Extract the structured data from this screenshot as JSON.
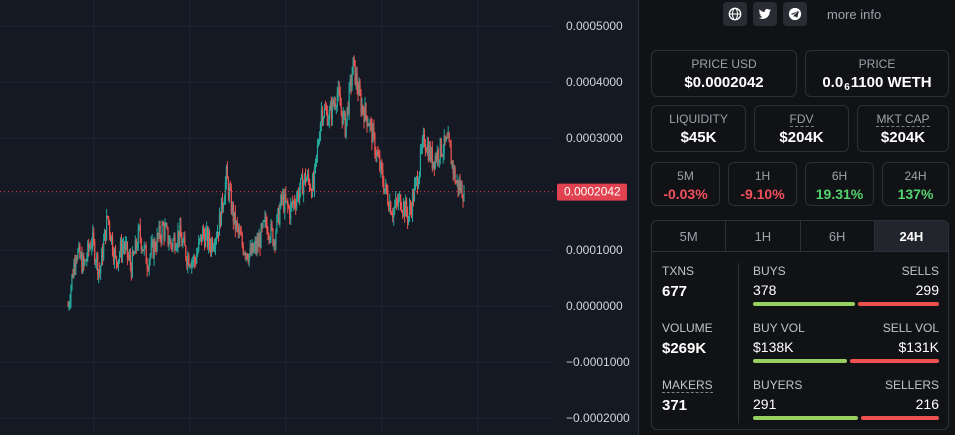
{
  "chart": {
    "y_ticks": [
      "0.0005000",
      "0.0004000",
      "0.0003000",
      "0.0002000",
      "0.0001000",
      "0.0000000",
      "−0.0001000",
      "−0.0002000"
    ],
    "current_price_label": "0.0002042",
    "colors": {
      "up": "#26a69a",
      "down": "#ef5350",
      "price_line": "#e0424f"
    }
  },
  "chart_data": {
    "type": "candlestick",
    "ylim": [
      -0.0002,
      0.0005
    ],
    "current": 0.0002042,
    "close_path": [
      0.0,
      0.0001,
      7e-05,
      0.00012,
      6e-05,
      0.00016,
      8e-05,
      0.00011,
      7e-05,
      0.00013,
      8e-05,
      0.00011,
      0.00014,
      0.00011,
      0.00013,
      9e-05,
      8e-05,
      0.00013,
      0.00011,
      0.00014,
      0.00023,
      0.00015,
      0.00011,
      9e-05,
      0.00011,
      0.00015,
      0.00012,
      0.00019,
      0.00017,
      0.0002,
      0.00023,
      0.00021,
      0.00035,
      0.00034,
      0.00038,
      0.00032,
      0.00043,
      0.00036,
      0.00033,
      0.00027,
      0.00021,
      0.00017,
      0.00019,
      0.00016,
      0.00022,
      0.0003,
      0.00026,
      0.00028,
      0.00029,
      0.00022,
      0.0002042
    ]
  },
  "links": {
    "website_icon": "globe-icon",
    "twitter_icon": "twitter-icon",
    "telegram_icon": "telegram-icon",
    "more_info": "more info"
  },
  "price_usd": {
    "label": "PRICE USD",
    "value": "$0.0002042"
  },
  "price_native": {
    "label": "PRICE",
    "prefix": "0.0",
    "zeros": "6",
    "suffix": "1100 WETH"
  },
  "liquidity": {
    "label": "LIQUIDITY",
    "value": "$45K"
  },
  "fdv": {
    "label": "FDV",
    "value": "$204K"
  },
  "mkt_cap": {
    "label": "MKT CAP",
    "value": "$204K"
  },
  "changes": [
    {
      "label": "5M",
      "value": "-0.03%",
      "dir": "neg"
    },
    {
      "label": "1H",
      "value": "-9.10%",
      "dir": "neg"
    },
    {
      "label": "6H",
      "value": "19.31%",
      "dir": "pos"
    },
    {
      "label": "24H",
      "value": "137%",
      "dir": "pos"
    }
  ],
  "tabs": [
    "5M",
    "1H",
    "6H",
    "24H"
  ],
  "active_tab": "24H",
  "stats": {
    "txns": {
      "label": "TXNS",
      "value": "677"
    },
    "volume": {
      "label": "VOLUME",
      "value": "$269K"
    },
    "makers": {
      "label": "MAKERS",
      "value": "371"
    },
    "buys": {
      "label": "BUYS",
      "value": "378"
    },
    "sells": {
      "label": "SELLS",
      "value": "299"
    },
    "buy_vol": {
      "label": "BUY VOL",
      "value": "$138K"
    },
    "sell_vol": {
      "label": "SELL VOL",
      "value": "$131K"
    },
    "buyers": {
      "label": "BUYERS",
      "value": "291"
    },
    "sellers": {
      "label": "SELLERS",
      "value": "216"
    }
  }
}
